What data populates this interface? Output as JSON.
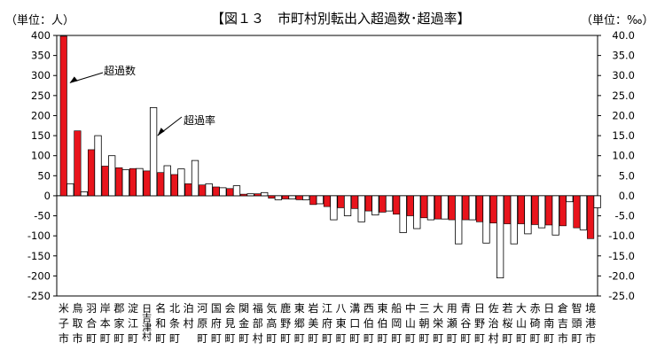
{
  "chart_data": {
    "type": "bar",
    "title": "【図１３　市町村別転出入超過数･超過率】",
    "left_unit_label": "（単位：人）",
    "right_unit_label": "（単位：‰）",
    "y_left": {
      "min": -250,
      "max": 400,
      "ticks": [
        400,
        350,
        300,
        250,
        200,
        150,
        100,
        50,
        0,
        -50,
        -100,
        -150,
        -200,
        -250
      ]
    },
    "y_right": {
      "min": -25.0,
      "max": 40.0,
      "ticks": [
        "40.0",
        "35.0",
        "30.0",
        "25.0",
        "20.0",
        "15.0",
        "10.0",
        "5.0",
        "0.0",
        "-5.0",
        "-10.0",
        "-15.0",
        "-20.0",
        "-25.0"
      ]
    },
    "categories": [
      [
        "米",
        "子",
        "市"
      ],
      [
        "鳥",
        "取",
        "市"
      ],
      [
        "羽",
        "合",
        "町"
      ],
      [
        "岸",
        "本",
        "町"
      ],
      [
        "郡",
        "家",
        "町"
      ],
      [
        "淀",
        "江",
        "町"
      ],
      [
        "日",
        "吉",
        "津",
        "村"
      ],
      [
        "名",
        "和",
        "町"
      ],
      [
        "北",
        "条",
        "町"
      ],
      [
        "泊",
        "村"
      ],
      [
        "河",
        "原",
        "町"
      ],
      [
        "国",
        "府",
        "町"
      ],
      [
        "会",
        "見",
        "町"
      ],
      [
        "関",
        "金",
        "町"
      ],
      [
        "福",
        "部",
        "村"
      ],
      [
        "気",
        "高",
        "町"
      ],
      [
        "鹿",
        "野",
        "町"
      ],
      [
        "東",
        "郷",
        "町"
      ],
      [
        "岩",
        "美",
        "町"
      ],
      [
        "江",
        "府",
        "町"
      ],
      [
        "八",
        "東",
        "町"
      ],
      [
        "溝",
        "口",
        "町"
      ],
      [
        "西",
        "伯",
        "町"
      ],
      [
        "東",
        "伯",
        "町"
      ],
      [
        "船",
        "岡",
        "町"
      ],
      [
        "中",
        "山",
        "町"
      ],
      [
        "三",
        "朝",
        "町"
      ],
      [
        "大",
        "栄",
        "町"
      ],
      [
        "用",
        "瀬",
        "町"
      ],
      [
        "青",
        "谷",
        "町"
      ],
      [
        "日",
        "野",
        "町"
      ],
      [
        "佐",
        "治",
        "村"
      ],
      [
        "若",
        "桜",
        "町"
      ],
      [
        "大",
        "山",
        "町"
      ],
      [
        "赤",
        "碕",
        "町"
      ],
      [
        "日",
        "南",
        "町"
      ],
      [
        "倉",
        "吉",
        "市"
      ],
      [
        "智",
        "頭",
        "町"
      ],
      [
        "境",
        "港",
        "市"
      ]
    ],
    "series": [
      {
        "name": "超過数",
        "axis": "left",
        "color": "#e8141c",
        "values": [
          398,
          162,
          115,
          74,
          70,
          68,
          62,
          58,
          53,
          30,
          27,
          22,
          18,
          4,
          5,
          -6,
          -8,
          -10,
          -22,
          -27,
          -30,
          -32,
          -38,
          -41,
          -46,
          -50,
          -55,
          -58,
          -60,
          -60,
          -65,
          -68,
          -70,
          -70,
          -72,
          -73,
          -75,
          -80,
          -107
        ]
      },
      {
        "name": "超過率",
        "axis": "right",
        "color": "#ffffff",
        "values": [
          3.0,
          1.0,
          15.0,
          10.0,
          6.5,
          6.8,
          22.0,
          7.5,
          6.7,
          8.8,
          3.0,
          2.0,
          2.5,
          0.5,
          0.8,
          -1.0,
          -0.8,
          -1.0,
          -2.0,
          -6.0,
          -5.0,
          -6.5,
          -4.8,
          -3.8,
          -9.2,
          -8.2,
          -6.0,
          -5.8,
          -12.0,
          -6.0,
          -11.8,
          -20.5,
          -12.0,
          -9.5,
          -8.0,
          -9.8,
          -1.5,
          -8.5,
          -3.0
        ]
      }
    ],
    "annotations": [
      "超過数",
      "超過率"
    ],
    "legend": "none",
    "grid": false
  }
}
